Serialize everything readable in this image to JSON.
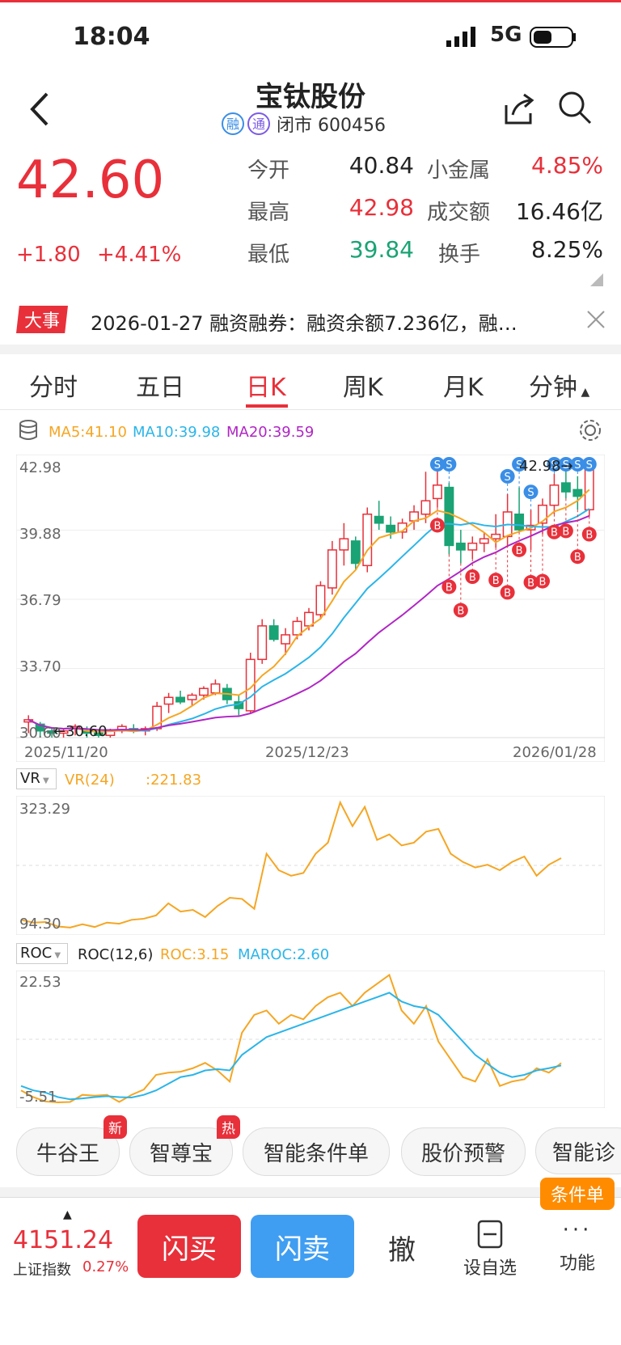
{
  "status_bar": {
    "time": "18:04",
    "network": "5G"
  },
  "header": {
    "title": "宝钛股份",
    "tag_rong": "融",
    "tag_tong": "通",
    "subtitle": "闭市 600456"
  },
  "quote": {
    "price": "42.60",
    "change": "+1.80",
    "change_pct": "+4.41%",
    "open_label": "今开",
    "open": "40.84",
    "high_label": "最高",
    "high": "42.98",
    "low_label": "最低",
    "low": "39.84",
    "sector_label": "小金属",
    "sector_pct": "4.85%",
    "turnover_label": "成交额",
    "turnover": "16.46亿",
    "turnover_rate_label": "换手",
    "turnover_rate": "8.25%"
  },
  "news": {
    "tag": "大事",
    "text": "2026-01-27 融资融券：融资余额7.236亿，融…"
  },
  "tabs": [
    {
      "label": "分时"
    },
    {
      "label": "五日"
    },
    {
      "label": "日K"
    },
    {
      "label": "周K"
    },
    {
      "label": "月K"
    },
    {
      "label": "分钟"
    }
  ],
  "ma_legend": {
    "ma5": "MA5:41.10",
    "ma10": "MA10:39.98",
    "ma20": "MA20:39.59"
  },
  "kline": {
    "y_labels": [
      "42.98",
      "39.88",
      "36.79",
      "33.70",
      "30.60"
    ],
    "x_labels": [
      "2025/11/20",
      "2025/12/23",
      "2026/01/28"
    ],
    "high_marker": "42.98",
    "low_marker": "30.60",
    "buy_label": "B",
    "sell_label": "S"
  },
  "vr": {
    "selector": "VR",
    "name": "VR(24)",
    "value": ":221.83",
    "y_top": "323.29",
    "y_bottom": "94.30"
  },
  "roc": {
    "selector": "ROC",
    "name": "ROC(12,6)",
    "roc": "ROC:3.15",
    "maroc": "MAROC:2.60",
    "y_top": "22.53",
    "y_bottom": "-5.51"
  },
  "chips": [
    {
      "label": "牛谷王",
      "badge": "新"
    },
    {
      "label": "智尊宝",
      "badge": "热"
    },
    {
      "label": "智能条件单"
    },
    {
      "label": "股价预警"
    },
    {
      "label": "智能诊"
    }
  ],
  "condition_order": "条件单",
  "bottom": {
    "index_value": "4151.24",
    "index_name": "上证指数",
    "index_pct": "0.27%",
    "buy": "闪买",
    "sell": "闪卖",
    "cancel": "撤",
    "watchlist": "设自选",
    "more": "功能"
  },
  "colors": {
    "up": "#e8303a",
    "down": "#1aa374",
    "ma5": "#f5a623",
    "ma10": "#2bb5e8",
    "ma20": "#b026c4",
    "sell_marker": "#3a8ee6"
  },
  "chart_data": [
    {
      "type": "candlestick",
      "title": "日K",
      "x_range": [
        "2025/11/20",
        "2026/01/28"
      ],
      "ylim": [
        30.6,
        42.98
      ],
      "series": [
        {
          "name": "MA5",
          "last": 41.1
        },
        {
          "name": "MA10",
          "last": 39.98
        },
        {
          "name": "MA20",
          "last": 39.59
        }
      ],
      "ohlc": [
        [
          31.3,
          31.6,
          30.8,
          31.4
        ],
        [
          31.2,
          31.3,
          30.6,
          30.9
        ],
        [
          30.9,
          31.0,
          30.6,
          30.8
        ],
        [
          30.8,
          31.0,
          30.6,
          30.9
        ],
        [
          31.0,
          31.2,
          30.7,
          31.1
        ],
        [
          30.9,
          31.1,
          30.6,
          30.8
        ],
        [
          30.8,
          30.9,
          30.6,
          30.7
        ],
        [
          30.7,
          31.0,
          30.6,
          30.9
        ],
        [
          30.9,
          31.2,
          30.8,
          31.1
        ],
        [
          31.0,
          31.2,
          30.8,
          30.9
        ],
        [
          30.9,
          31.1,
          30.7,
          31.0
        ],
        [
          31.0,
          32.2,
          30.9,
          32.0
        ],
        [
          32.1,
          32.6,
          31.7,
          32.4
        ],
        [
          32.4,
          32.7,
          32.1,
          32.2
        ],
        [
          32.3,
          32.6,
          32.0,
          32.5
        ],
        [
          32.5,
          32.9,
          32.3,
          32.8
        ],
        [
          32.6,
          33.2,
          32.5,
          33.0
        ],
        [
          32.8,
          33.0,
          32.1,
          32.3
        ],
        [
          32.2,
          32.5,
          31.6,
          31.9
        ],
        [
          31.8,
          34.4,
          31.7,
          34.1
        ],
        [
          34.1,
          35.9,
          33.9,
          35.6
        ],
        [
          35.6,
          35.9,
          34.9,
          35.0
        ],
        [
          34.8,
          35.5,
          34.3,
          35.2
        ],
        [
          35.2,
          36.0,
          35.0,
          35.8
        ],
        [
          35.6,
          36.4,
          35.4,
          36.2
        ],
        [
          36.1,
          37.6,
          35.9,
          37.4
        ],
        [
          37.3,
          39.4,
          37.0,
          39.0
        ],
        [
          39.0,
          40.2,
          38.3,
          39.5
        ],
        [
          39.4,
          39.6,
          38.1,
          38.4
        ],
        [
          38.3,
          40.9,
          38.0,
          40.6
        ],
        [
          40.5,
          41.2,
          39.9,
          40.2
        ],
        [
          40.1,
          40.5,
          39.5,
          39.8
        ],
        [
          39.8,
          40.4,
          39.5,
          40.2
        ],
        [
          40.3,
          41.0,
          39.9,
          40.7
        ],
        [
          40.6,
          42.5,
          40.2,
          41.2
        ],
        [
          41.3,
          42.9,
          40.9,
          41.9
        ],
        [
          41.8,
          42.0,
          38.8,
          39.2
        ],
        [
          39.3,
          39.9,
          38.4,
          39.0
        ],
        [
          39.0,
          39.6,
          38.6,
          39.3
        ],
        [
          39.3,
          39.8,
          38.9,
          39.5
        ],
        [
          39.5,
          40.6,
          39.1,
          39.7
        ],
        [
          39.6,
          41.5,
          39.2,
          40.7
        ],
        [
          40.6,
          41.8,
          39.8,
          39.9
        ],
        [
          39.9,
          40.8,
          39.0,
          40.1
        ],
        [
          40.2,
          41.3,
          39.7,
          41.0
        ],
        [
          41.0,
          42.4,
          40.6,
          41.9
        ],
        [
          42.0,
          42.8,
          41.3,
          41.6
        ],
        [
          41.7,
          42.3,
          40.8,
          41.4
        ],
        [
          40.8,
          42.98,
          40.5,
          42.6
        ]
      ]
    },
    {
      "type": "line",
      "title": "VR(24)",
      "ylim": [
        94.3,
        323.29
      ],
      "series": [
        {
          "name": "VR",
          "values": [
            110,
            105,
            106,
            98,
            96,
            102,
            97,
            105,
            103,
            110,
            112,
            118,
            140,
            125,
            128,
            115,
            135,
            150,
            148,
            130,
            230,
            200,
            190,
            195,
            230,
            250,
            323,
            280,
            315,
            255,
            265,
            245,
            250,
            270,
            275,
            230,
            215,
            205,
            210,
            200,
            215,
            225,
            190,
            210,
            222
          ]
        }
      ]
    },
    {
      "type": "line",
      "title": "ROC(12,6)",
      "ylim": [
        -5.51,
        22.53
      ],
      "series": [
        {
          "name": "ROC",
          "values": [
            -3,
            -4.5,
            -5.5,
            -5.7,
            -5.6,
            -4.0,
            -4.2,
            -4.0,
            -5.6,
            -4.0,
            -2.8,
            0.5,
            1.0,
            1.2,
            2.0,
            3.2,
            1.5,
            -1.0,
            10,
            14,
            15,
            12,
            14,
            13,
            16,
            18,
            19,
            16,
            19,
            21,
            23,
            15,
            12,
            16,
            8,
            4,
            0,
            -1,
            4,
            -2,
            -1,
            -0.5,
            2,
            1,
            3.15
          ]
        },
        {
          "name": "MAROC",
          "values": [
            -2,
            -3,
            -3.5,
            -4.5,
            -5.0,
            -4.8,
            -4.5,
            -4.3,
            -4.5,
            -4.6,
            -4.0,
            -3.0,
            -1.5,
            0,
            0.5,
            1.5,
            1.8,
            1.5,
            5,
            7,
            9,
            10,
            11,
            12,
            13,
            14,
            15,
            16,
            17,
            18,
            19,
            17,
            16,
            15.5,
            14,
            11,
            8,
            5,
            3,
            1,
            0,
            0.5,
            1.5,
            2.0,
            2.6
          ]
        }
      ]
    }
  ]
}
